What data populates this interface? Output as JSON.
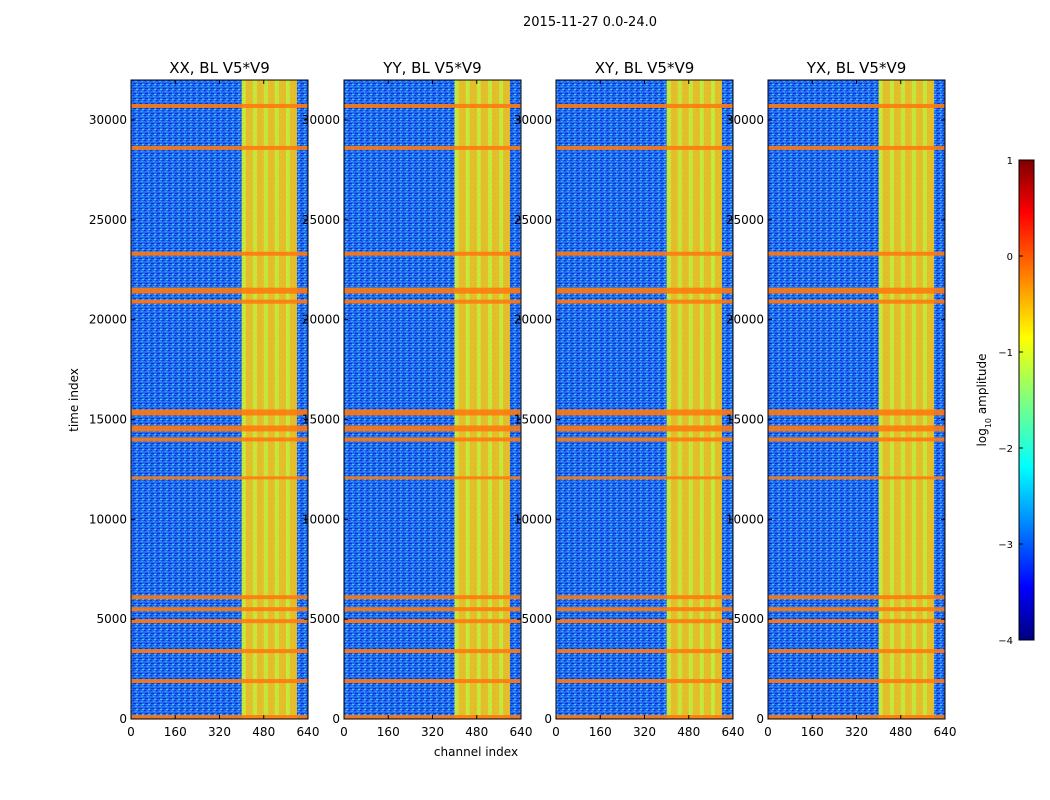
{
  "figure": {
    "suptitle": "2015-11-27 0.0-24.0"
  },
  "chart_data": {
    "type": "heatmap",
    "xlabel": "channel index",
    "ylabel": "time index",
    "xlim": [
      0,
      640
    ],
    "ylim": [
      0,
      32000
    ],
    "xticks": [
      0,
      160,
      320,
      480,
      640
    ],
    "yticks": [
      0,
      5000,
      10000,
      15000,
      20000,
      25000,
      30000
    ],
    "panels": [
      {
        "title": "XX, BL V5*V9",
        "band_start_channel": 400,
        "band_end_channel": 600
      },
      {
        "title": "YY, BL V5*V9",
        "band_start_channel": 400,
        "band_end_channel": 600
      },
      {
        "title": "XY, BL V5*V9",
        "band_start_channel": 400,
        "band_end_channel": 600
      },
      {
        "title": "YX, BL V5*V9",
        "band_start_channel": 400,
        "band_end_channel": 600
      }
    ],
    "rfi_time_bands": [
      [
        0,
        200
      ],
      [
        1800,
        2000
      ],
      [
        3300,
        3500
      ],
      [
        4800,
        5000
      ],
      [
        5400,
        5600
      ],
      [
        6000,
        6200
      ],
      [
        12000,
        12150
      ],
      [
        13900,
        14100
      ],
      [
        14400,
        14700
      ],
      [
        15200,
        15500
      ],
      [
        20800,
        21000
      ],
      [
        21300,
        21600
      ],
      [
        23200,
        23400
      ],
      [
        28500,
        28700
      ],
      [
        30600,
        30800
      ]
    ],
    "colorbar": {
      "label": "log10 amplitude",
      "label_main": "log",
      "label_sub": "10",
      "label_tail": " amplitude",
      "ticks": [
        1,
        0,
        -1,
        -2,
        -3,
        -4
      ],
      "tick_labels": [
        "1",
        "0",
        "−1",
        "−2",
        "−3",
        "−4"
      ],
      "range": [
        -4,
        1
      ],
      "colormap": "jet"
    }
  }
}
